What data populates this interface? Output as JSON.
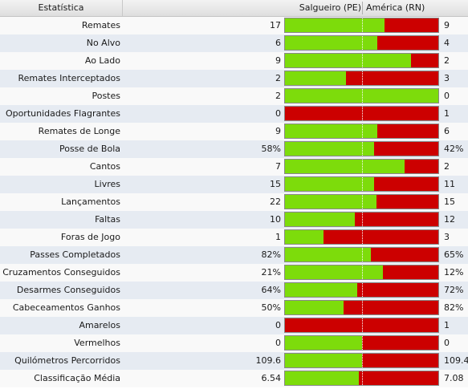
{
  "header": {
    "stat_label": "Estatística",
    "home_team": "Salgueiro (PE)",
    "away_team": "América (RN)"
  },
  "colors": {
    "home": "#7ddc0b",
    "away": "#cc0000"
  },
  "stats": [
    {
      "label": "Remates",
      "home": "17",
      "away": "9",
      "home_share": 0.65
    },
    {
      "label": "No Alvo",
      "home": "6",
      "away": "4",
      "home_share": 0.6
    },
    {
      "label": "Ao Lado",
      "home": "9",
      "away": "2",
      "home_share": 0.82
    },
    {
      "label": "Remates Interceptados",
      "home": "2",
      "away": "3",
      "home_share": 0.4
    },
    {
      "label": "Postes",
      "home": "2",
      "away": "0",
      "home_share": 1.0
    },
    {
      "label": "Oportunidades Flagrantes",
      "home": "0",
      "away": "1",
      "home_share": 0.0
    },
    {
      "label": "Remates de Longe",
      "home": "9",
      "away": "6",
      "home_share": 0.6
    },
    {
      "label": "Posse de Bola",
      "home": "58%",
      "away": "42%",
      "home_share": 0.58
    },
    {
      "label": "Cantos",
      "home": "7",
      "away": "2",
      "home_share": 0.78
    },
    {
      "label": "Livres",
      "home": "15",
      "away": "11",
      "home_share": 0.58
    },
    {
      "label": "Lançamentos",
      "home": "22",
      "away": "15",
      "home_share": 0.595
    },
    {
      "label": "Faltas",
      "home": "10",
      "away": "12",
      "home_share": 0.455
    },
    {
      "label": "Foras de Jogo",
      "home": "1",
      "away": "3",
      "home_share": 0.25
    },
    {
      "label": "Passes Completados",
      "home": "82%",
      "away": "65%",
      "home_share": 0.56
    },
    {
      "label": "Cruzamentos Conseguidos",
      "home": "21%",
      "away": "12%",
      "home_share": 0.64
    },
    {
      "label": "Desarmes Conseguidos",
      "home": "64%",
      "away": "72%",
      "home_share": 0.47
    },
    {
      "label": "Cabeceamentos Ganhos",
      "home": "50%",
      "away": "82%",
      "home_share": 0.38
    },
    {
      "label": "Amarelos",
      "home": "0",
      "away": "1",
      "home_share": 0.0
    },
    {
      "label": "Vermelhos",
      "home": "0",
      "away": "0",
      "home_share": 0.5
    },
    {
      "label": "Quilómetros Percorridos",
      "home": "109.6",
      "away": "109.4",
      "home_share": 0.5
    },
    {
      "label": "Classificação Média",
      "home": "6.54",
      "away": "7.08",
      "home_share": 0.48
    }
  ]
}
